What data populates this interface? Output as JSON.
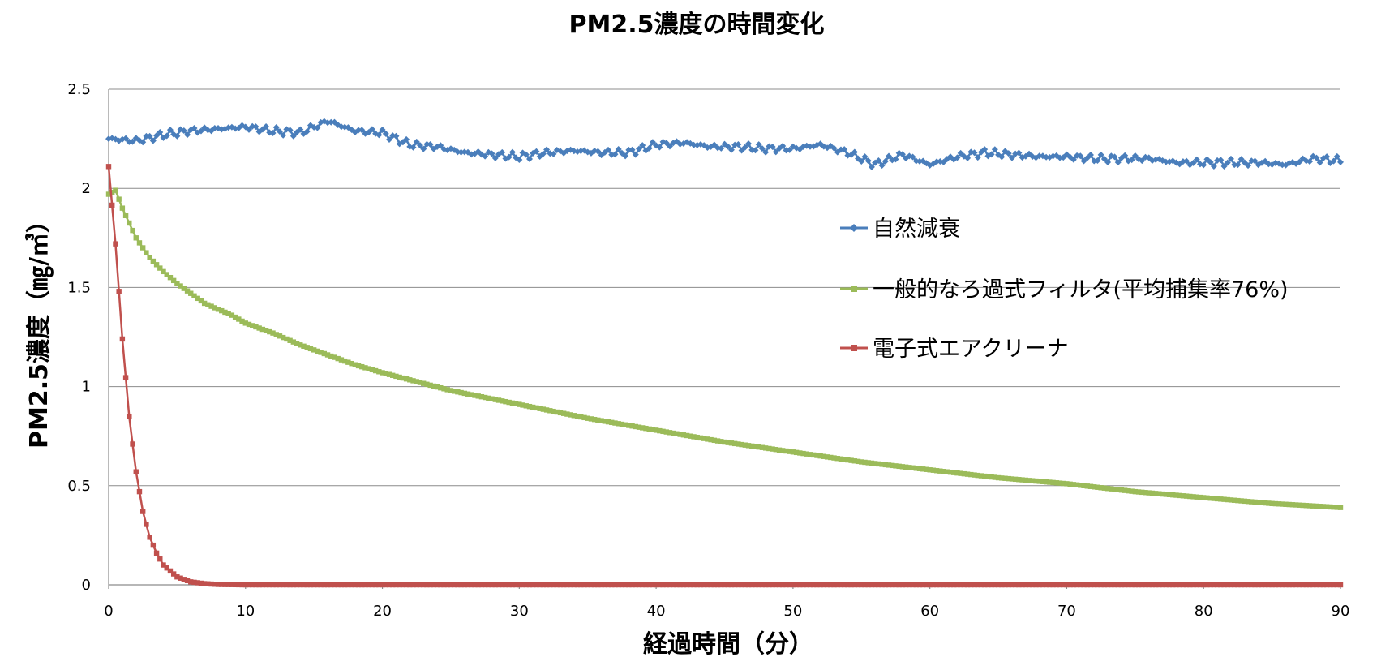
{
  "chart_data": {
    "type": "line",
    "title": "PM2.5濃度の時間変化",
    "xlabel": "経過時間（分）",
    "ylabel": "PM2.5濃度（㎎/㎥）",
    "xlim": [
      0,
      90
    ],
    "ylim": [
      0,
      2.5
    ],
    "x_ticks": [
      "0",
      "10",
      "20",
      "30",
      "40",
      "50",
      "60",
      "70",
      "80",
      "90"
    ],
    "y_ticks": [
      "0",
      "0.5",
      "1",
      "1.5",
      "2",
      "2.5"
    ],
    "grid": true,
    "legend_position": "right",
    "series": [
      {
        "name": "自然減衰",
        "color": "#4a7ebb",
        "marker": "diamond",
        "x": [
          0,
          2,
          4,
          6,
          8,
          10,
          12,
          14,
          16,
          18,
          20,
          22,
          24,
          26,
          28,
          30,
          32,
          34,
          36,
          38,
          40,
          42,
          44,
          46,
          48,
          50,
          52,
          54,
          56,
          58,
          60,
          62,
          64,
          66,
          68,
          70,
          72,
          74,
          76,
          78,
          80,
          82,
          84,
          86,
          88,
          90
        ],
        "y": [
          2.25,
          2.24,
          2.27,
          2.29,
          2.3,
          2.31,
          2.29,
          2.28,
          2.34,
          2.29,
          2.28,
          2.22,
          2.21,
          2.18,
          2.17,
          2.16,
          2.18,
          2.19,
          2.18,
          2.18,
          2.22,
          2.23,
          2.21,
          2.21,
          2.2,
          2.2,
          2.22,
          2.18,
          2.12,
          2.17,
          2.12,
          2.16,
          2.18,
          2.17,
          2.16,
          2.16,
          2.15,
          2.15,
          2.15,
          2.13,
          2.13,
          2.13,
          2.13,
          2.12,
          2.15,
          2.14
        ]
      },
      {
        "name": "一般的なろ過式フィルタ(平均捕集率76%)",
        "color": "#9bbb59",
        "marker": "square",
        "x": [
          0,
          0.5,
          1,
          2,
          3,
          4,
          5,
          6,
          7,
          8,
          9,
          10,
          12,
          14,
          16,
          18,
          20,
          25,
          30,
          35,
          40,
          45,
          50,
          55,
          60,
          65,
          70,
          75,
          80,
          85,
          90
        ],
        "y": [
          1.97,
          1.99,
          1.9,
          1.75,
          1.65,
          1.58,
          1.52,
          1.47,
          1.42,
          1.39,
          1.36,
          1.32,
          1.27,
          1.21,
          1.16,
          1.11,
          1.07,
          0.98,
          0.91,
          0.84,
          0.78,
          0.72,
          0.67,
          0.62,
          0.58,
          0.54,
          0.51,
          0.47,
          0.44,
          0.41,
          0.39
        ]
      },
      {
        "name": "電子式エアクリーナ",
        "color": "#c0504d",
        "marker": "square",
        "x": [
          0,
          0.5,
          1,
          1.5,
          2,
          2.5,
          3,
          3.5,
          4,
          5,
          6,
          7,
          8,
          9,
          10,
          15,
          20,
          30,
          40,
          50,
          60,
          70,
          80,
          90
        ],
        "y": [
          2.11,
          1.72,
          1.24,
          0.85,
          0.57,
          0.37,
          0.24,
          0.16,
          0.1,
          0.04,
          0.015,
          0.006,
          0.002,
          0.001,
          0,
          0,
          0,
          0,
          0,
          0,
          0,
          0,
          0,
          0
        ]
      }
    ]
  }
}
